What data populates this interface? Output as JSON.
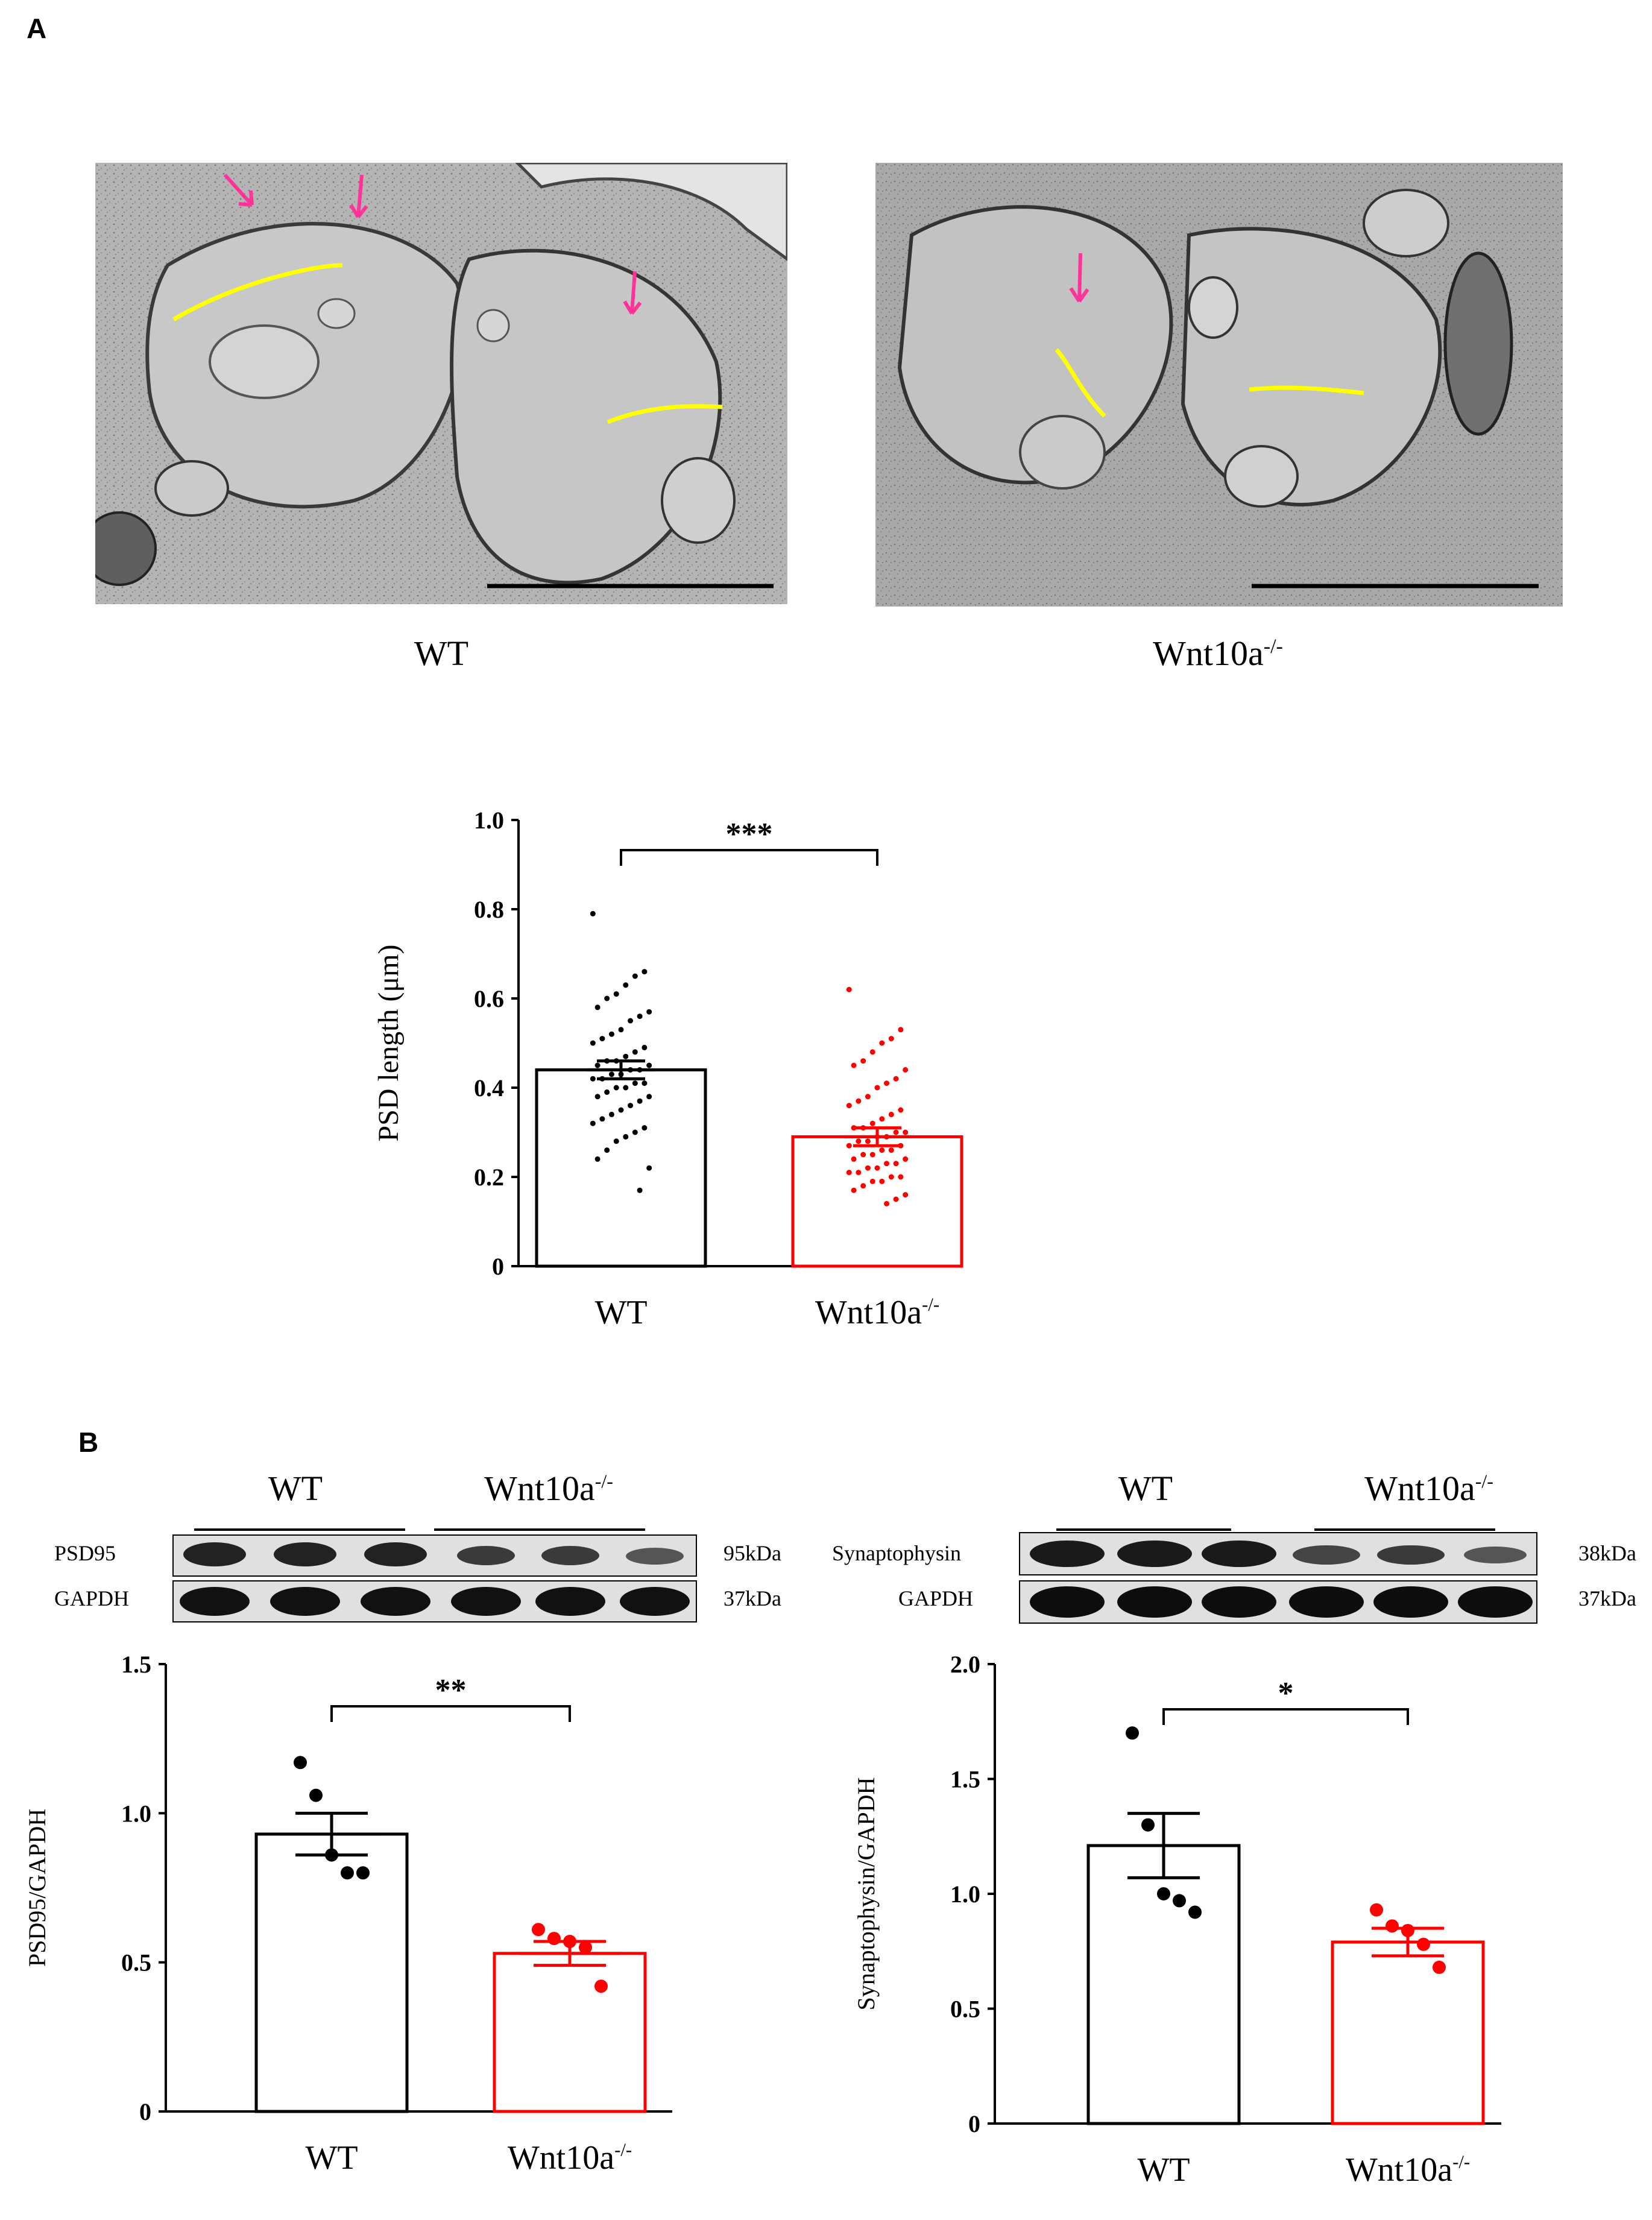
{
  "panels": {
    "a_letter": "A",
    "b_letter": "B"
  },
  "micrographs": {
    "left_caption": "WT",
    "right_caption_base": "Wnt10a",
    "right_caption_sup": "-/-"
  },
  "blots": {
    "left": {
      "group1": "WT",
      "group2_base": "Wnt10a",
      "group2_sup": "-/-",
      "rows": [
        {
          "label": "PSD95",
          "kda": "95kDa"
        },
        {
          "label": "GAPDH",
          "kda": "37kDa"
        }
      ]
    },
    "right": {
      "group1": "WT",
      "group2_base": "Wnt10a",
      "group2_sup": "-/-",
      "rows": [
        {
          "label": "Synaptophysin",
          "kda": "38kDa"
        },
        {
          "label": "GAPDH",
          "kda": "37kDa"
        }
      ]
    }
  },
  "colors": {
    "wt": "#000000",
    "ko": "#ff0000",
    "psd_line": "#ffff00",
    "arrow": "#ff3399"
  },
  "chart_data": [
    {
      "id": "psd_length",
      "type": "bar",
      "categories": [
        "WT",
        "Wnt10a-/-"
      ],
      "category_labels": [
        {
          "base": "WT",
          "sup": ""
        },
        {
          "base": "Wnt10a",
          "sup": "-/-"
        }
      ],
      "values": [
        0.44,
        0.29
      ],
      "sem": [
        0.02,
        0.02
      ],
      "ylabel": "PSD length (μm)",
      "ylim": [
        0,
        1.0
      ],
      "yticks": [
        "0",
        "0.2",
        "0.4",
        "0.6",
        "0.8",
        "1.0"
      ],
      "ytick_values": [
        0,
        0.2,
        0.4,
        0.6,
        0.8,
        1.0
      ],
      "significance": "***",
      "points": [
        [
          0.79,
          0.66,
          0.65,
          0.63,
          0.61,
          0.6,
          0.58,
          0.57,
          0.56,
          0.55,
          0.53,
          0.52,
          0.51,
          0.5,
          0.49,
          0.48,
          0.47,
          0.46,
          0.46,
          0.45,
          0.45,
          0.44,
          0.44,
          0.43,
          0.43,
          0.42,
          0.42,
          0.41,
          0.41,
          0.4,
          0.4,
          0.39,
          0.38,
          0.38,
          0.37,
          0.36,
          0.35,
          0.34,
          0.33,
          0.32,
          0.31,
          0.3,
          0.29,
          0.28,
          0.26,
          0.24,
          0.22,
          0.17
        ],
        [
          0.62,
          0.53,
          0.51,
          0.5,
          0.48,
          0.46,
          0.45,
          0.44,
          0.42,
          0.41,
          0.4,
          0.38,
          0.37,
          0.36,
          0.35,
          0.34,
          0.33,
          0.32,
          0.31,
          0.31,
          0.3,
          0.3,
          0.29,
          0.29,
          0.28,
          0.28,
          0.27,
          0.27,
          0.26,
          0.26,
          0.25,
          0.25,
          0.24,
          0.24,
          0.23,
          0.23,
          0.22,
          0.22,
          0.21,
          0.21,
          0.2,
          0.2,
          0.19,
          0.19,
          0.18,
          0.17,
          0.16,
          0.15,
          0.14
        ]
      ]
    },
    {
      "id": "psd95_gapdh",
      "type": "bar",
      "categories": [
        "WT",
        "Wnt10a-/-"
      ],
      "category_labels": [
        {
          "base": "WT",
          "sup": ""
        },
        {
          "base": "Wnt10a",
          "sup": "-/-"
        }
      ],
      "values": [
        0.93,
        0.53
      ],
      "sem": [
        0.07,
        0.04
      ],
      "ylabel": "PSD95/GAPDH",
      "ylim": [
        0,
        1.5
      ],
      "yticks": [
        "0",
        "0.5",
        "1.0",
        "1.5"
      ],
      "ytick_values": [
        0,
        0.5,
        1.0,
        1.5
      ],
      "significance": "**",
      "points": [
        [
          1.17,
          1.06,
          0.86,
          0.8,
          0.8
        ],
        [
          0.61,
          0.58,
          0.57,
          0.55,
          0.42
        ]
      ]
    },
    {
      "id": "synaptophysin_gapdh",
      "type": "bar",
      "categories": [
        "WT",
        "Wnt10a-/-"
      ],
      "category_labels": [
        {
          "base": "WT",
          "sup": ""
        },
        {
          "base": "Wnt10a",
          "sup": "-/-"
        }
      ],
      "values": [
        1.21,
        0.79
      ],
      "sem": [
        0.14,
        0.06
      ],
      "ylabel": "Synaptophysin/GAPDH",
      "ylim": [
        0,
        2.0
      ],
      "yticks": [
        "0",
        "0.5",
        "1.0",
        "1.5",
        "2.0"
      ],
      "ytick_values": [
        0,
        0.5,
        1.0,
        1.5,
        2.0
      ],
      "significance": "*",
      "points": [
        [
          1.7,
          1.3,
          1.0,
          0.97,
          0.92
        ],
        [
          0.93,
          0.86,
          0.84,
          0.78,
          0.68
        ]
      ]
    }
  ]
}
